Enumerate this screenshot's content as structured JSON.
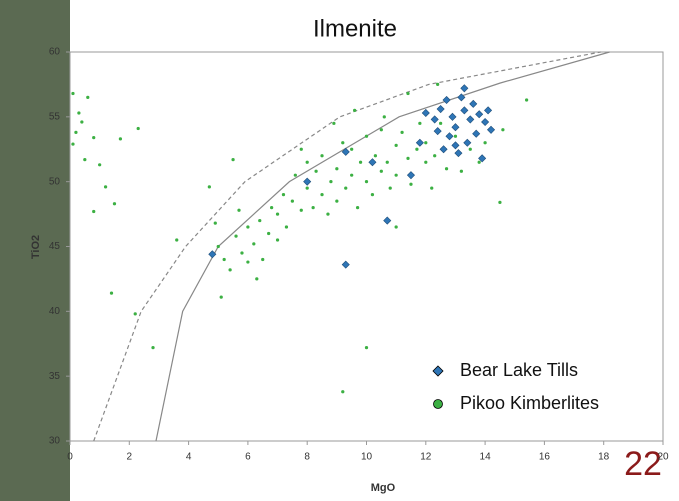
{
  "chart_data": {
    "type": "scatter",
    "title": "Ilmenite",
    "x_label": "MgO",
    "y_label": "TiO2",
    "slide_number": "22",
    "xlim": [
      0,
      20
    ],
    "ylim": [
      30,
      60
    ],
    "xticks": [
      0,
      2,
      4,
      6,
      8,
      10,
      12,
      14,
      16,
      18,
      20
    ],
    "yticks": [
      30,
      35,
      40,
      45,
      50,
      55,
      60
    ],
    "legend": "lower right",
    "series": [
      {
        "name": "Bear Lake Tills",
        "color": "#2e75b6",
        "marker": "diamond",
        "x": [
          4.8,
          9.3,
          10.7,
          9.3,
          8.0,
          10.2,
          11.5,
          12.0,
          12.3,
          12.5,
          12.7,
          12.9,
          13.0,
          13.2,
          13.3,
          13.5,
          13.6,
          13.8,
          14.0,
          14.2,
          12.8,
          13.0,
          13.4,
          13.1,
          13.9,
          12.4,
          11.8,
          12.6,
          14.1,
          13.7,
          13.3
        ],
        "values": [
          44.4,
          43.6,
          47.0,
          52.3,
          50.0,
          51.5,
          50.5,
          55.3,
          54.8,
          55.6,
          56.3,
          55.0,
          54.2,
          56.5,
          55.5,
          54.8,
          56.0,
          55.2,
          54.6,
          54.0,
          53.5,
          52.8,
          53.0,
          52.2,
          51.8,
          53.9,
          53.0,
          52.5,
          55.5,
          53.7,
          57.2
        ]
      },
      {
        "name": "Pikoo Kimberlites",
        "color": "#3cb043",
        "marker": "circle",
        "x": [
          0.1,
          0.3,
          0.2,
          0.1,
          0.4,
          0.6,
          0.8,
          0.5,
          1.0,
          1.2,
          0.8,
          1.5,
          1.7,
          2.3,
          1.4,
          2.2,
          2.8,
          4.7,
          5.5,
          9.2,
          10.0,
          14.5,
          15.4,
          14.6,
          5.0,
          5.2,
          5.4,
          5.6,
          5.8,
          6.0,
          6.0,
          6.2,
          6.4,
          6.5,
          6.7,
          6.8,
          7.0,
          7.0,
          7.2,
          7.3,
          7.5,
          7.6,
          7.8,
          8.0,
          8.0,
          8.2,
          8.3,
          8.5,
          8.5,
          8.7,
          8.8,
          9.0,
          9.0,
          9.2,
          9.3,
          9.5,
          9.5,
          9.7,
          9.8,
          10.0,
          10.0,
          10.2,
          10.3,
          10.5,
          10.5,
          10.7,
          10.8,
          11.0,
          11.0,
          11.2,
          11.4,
          11.5,
          11.7,
          11.8,
          12.0,
          12.0,
          12.2,
          12.3,
          12.5,
          12.7,
          13.0,
          13.2,
          13.5,
          13.8,
          14.0,
          6.3,
          5.1,
          5.7,
          7.8,
          8.9,
          9.6,
          10.6,
          11.4,
          12.4,
          11.0,
          4.9,
          3.6
        ],
        "values": [
          56.8,
          55.3,
          53.8,
          52.9,
          54.6,
          56.5,
          53.4,
          51.7,
          51.3,
          49.6,
          47.7,
          48.3,
          53.3,
          54.1,
          41.4,
          39.8,
          37.2,
          49.6,
          51.7,
          33.8,
          37.2,
          48.4,
          56.3,
          54.0,
          45.0,
          44.0,
          43.2,
          45.8,
          44.5,
          46.5,
          43.8,
          45.2,
          47.0,
          44.0,
          46.0,
          48.0,
          45.5,
          47.5,
          49.0,
          46.5,
          48.5,
          50.5,
          47.8,
          49.5,
          51.5,
          48.0,
          50.8,
          49.0,
          52.0,
          47.5,
          50.0,
          51.0,
          48.5,
          53.0,
          49.5,
          50.5,
          52.5,
          48.0,
          51.5,
          50.0,
          53.5,
          49.0,
          52.0,
          50.8,
          54.0,
          51.5,
          49.5,
          52.8,
          50.5,
          53.8,
          51.8,
          49.8,
          52.5,
          54.5,
          51.5,
          53.0,
          49.5,
          52.0,
          54.5,
          51.0,
          53.5,
          50.8,
          52.5,
          51.5,
          53.0,
          42.5,
          41.1,
          47.8,
          52.5,
          54.5,
          55.5,
          55.0,
          56.8,
          57.5,
          46.5,
          46.8,
          45.5
        ]
      }
    ],
    "reference_lines": [
      {
        "style": "dashed",
        "color": "#888888",
        "x": [
          0.8,
          2.4,
          3.9,
          5.9,
          9.1,
          12.1,
          17.9
        ],
        "values": [
          30,
          40,
          45,
          50,
          55,
          57.5,
          60
        ]
      },
      {
        "style": "solid",
        "color": "#888888",
        "x": [
          2.9,
          3.8,
          5.0,
          7.4,
          11.1,
          14.5,
          18.2
        ],
        "values": [
          30,
          40,
          45,
          50,
          55,
          57.6,
          60
        ]
      }
    ]
  }
}
